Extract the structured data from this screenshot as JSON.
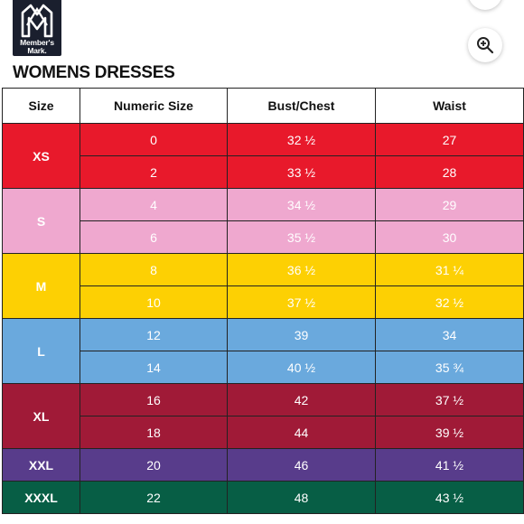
{
  "brand": {
    "logo_text": "Member's Mark."
  },
  "title": "WOMENS DRESSES",
  "colors": {
    "XS": "#e8192b",
    "S": "#efa8cf",
    "M": "#fdd003",
    "L": "#6aa9dd",
    "XL": "#a01a37",
    "XXL": "#583c8b",
    "XXXL": "#075e45"
  },
  "table": {
    "headers": [
      "Size",
      "Numeric Size",
      "Bust/Chest",
      "Waist"
    ],
    "groups": [
      {
        "size": "XS",
        "rows": [
          {
            "numeric": "0",
            "bust": "32 ½",
            "waist": "27"
          },
          {
            "numeric": "2",
            "bust": "33 ½",
            "waist": "28"
          }
        ]
      },
      {
        "size": "S",
        "rows": [
          {
            "numeric": "4",
            "bust": "34 ½",
            "waist": "29"
          },
          {
            "numeric": "6",
            "bust": "35 ½",
            "waist": "30"
          }
        ]
      },
      {
        "size": "M",
        "rows": [
          {
            "numeric": "8",
            "bust": "36 ½",
            "waist": "31 ¼"
          },
          {
            "numeric": "10",
            "bust": "37 ½",
            "waist": "32 ½"
          }
        ]
      },
      {
        "size": "L",
        "rows": [
          {
            "numeric": "12",
            "bust": "39",
            "waist": "34"
          },
          {
            "numeric": "14",
            "bust": "40 ½",
            "waist": "35 ¾"
          }
        ]
      },
      {
        "size": "XL",
        "rows": [
          {
            "numeric": "16",
            "bust": "42",
            "waist": "37 ½"
          },
          {
            "numeric": "18",
            "bust": "44",
            "waist": "39 ½"
          }
        ]
      },
      {
        "size": "XXL",
        "rows": [
          {
            "numeric": "20",
            "bust": "46",
            "waist": "41 ½"
          }
        ]
      },
      {
        "size": "XXXL",
        "rows": [
          {
            "numeric": "22",
            "bust": "48",
            "waist": "43 ½"
          }
        ]
      }
    ]
  },
  "icons": {
    "zoom": "zoom-in-icon",
    "top_button": "action-button-icon",
    "logo": "members-mark-logo"
  }
}
